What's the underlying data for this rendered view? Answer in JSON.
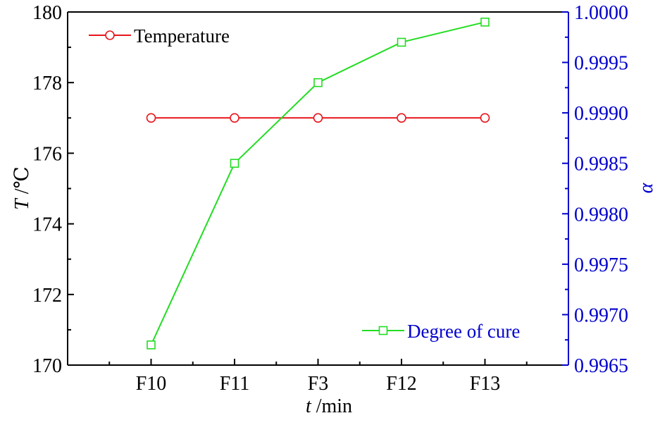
{
  "chart_data": {
    "type": "line",
    "categories": [
      "F10",
      "F11",
      "F3",
      "F12",
      "F13"
    ],
    "x_axis": {
      "label_var": "t",
      "label_unit": " /min"
    },
    "y_left": {
      "label_var": "T",
      "label_unit": " /℃",
      "range": [
        170,
        180
      ],
      "ticks": [
        170,
        172,
        174,
        176,
        178,
        180
      ],
      "tick_labels": [
        "170",
        "172",
        "174",
        "176",
        "178",
        "180"
      ],
      "color": "#000000"
    },
    "y_right": {
      "label": "α",
      "range": [
        0.9965,
        1.0
      ],
      "ticks": [
        0.9965,
        0.997,
        0.9975,
        0.998,
        0.9985,
        0.999,
        0.9995,
        1.0
      ],
      "tick_labels": [
        "0.9965",
        "0.9970",
        "0.9975",
        "0.9980",
        "0.9985",
        "0.9990",
        "0.9995",
        "1.0000"
      ],
      "color": "#0000cc"
    },
    "series": [
      {
        "name": "Temperature",
        "axis": "left",
        "marker": "circle",
        "color": "#e8151b",
        "values": [
          177,
          177,
          177,
          177,
          177
        ]
      },
      {
        "name": "Degree of cure",
        "axis": "right",
        "marker": "square",
        "color": "#22dd22",
        "values": [
          0.9967,
          0.9985,
          0.9993,
          0.9997,
          0.9999
        ]
      }
    ],
    "legend_placement": [
      "top-left",
      "bottom-right"
    ],
    "grid": false
  }
}
